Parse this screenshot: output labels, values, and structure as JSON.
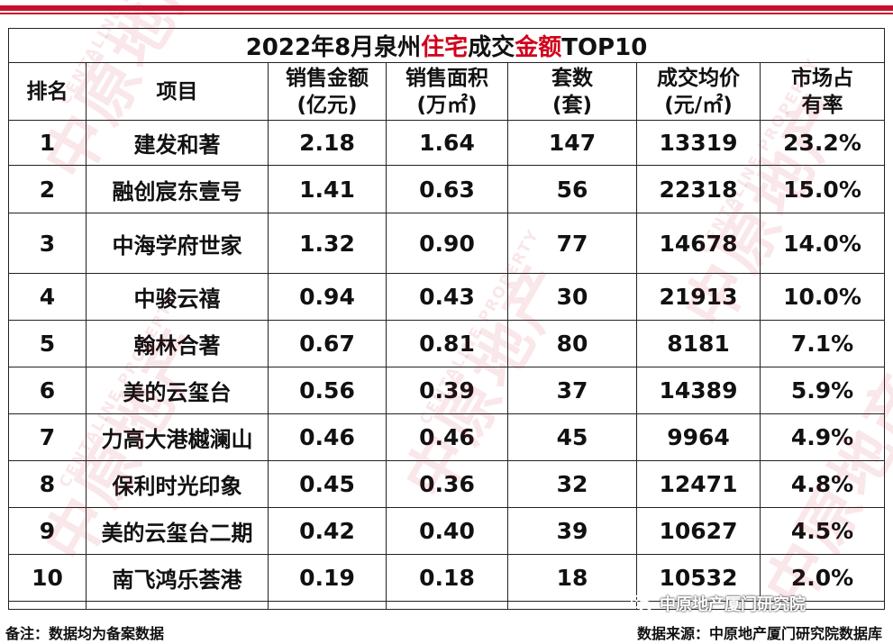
{
  "title": {
    "pre": "2022年8月泉州",
    "hl1": "住宅",
    "mid": "成交",
    "hl2": "金额",
    "post": "TOP10"
  },
  "headers": {
    "rank": "排名",
    "project": "项目",
    "amount_1": "销售金额",
    "amount_2": "(亿元)",
    "area_1": "销售面积",
    "area_2": "(万㎡)",
    "units_1": "套数",
    "units_2": "(套)",
    "price_1": "成交均价",
    "price_2": "(元/㎡)",
    "share_1": "市场占",
    "share_2": "有率"
  },
  "rows": [
    {
      "rank": "1",
      "name": "建发和著",
      "amount": "2.18",
      "area": "1.64",
      "units": "147",
      "price": "13319",
      "share": "23.2%"
    },
    {
      "rank": "2",
      "name": "融创宸东壹号",
      "amount": "1.41",
      "area": "0.63",
      "units": "56",
      "price": "22318",
      "share": "15.0%"
    },
    {
      "rank": "3",
      "name": "中海学府世家",
      "amount": "1.32",
      "area": "0.90",
      "units": "77",
      "price": "14678",
      "share": "14.0%"
    },
    {
      "rank": "4",
      "name": "中骏云禧",
      "amount": "0.94",
      "area": "0.43",
      "units": "30",
      "price": "21913",
      "share": "10.0%"
    },
    {
      "rank": "5",
      "name": "翰林合著",
      "amount": "0.67",
      "area": "0.81",
      "units": "80",
      "price": "8181",
      "share": "7.1%"
    },
    {
      "rank": "6",
      "name": "美的云玺台",
      "amount": "0.56",
      "area": "0.39",
      "units": "37",
      "price": "14389",
      "share": "5.9%"
    },
    {
      "rank": "7",
      "name": "力高大港樾澜山",
      "amount": "0.46",
      "area": "0.46",
      "units": "45",
      "price": "9964",
      "share": "4.9%"
    },
    {
      "rank": "8",
      "name": "保利时光印象",
      "amount": "0.45",
      "area": "0.36",
      "units": "32",
      "price": "12471",
      "share": "4.8%"
    },
    {
      "rank": "9",
      "name": "美的云玺台二期",
      "amount": "0.42",
      "area": "0.40",
      "units": "39",
      "price": "10627",
      "share": "4.5%"
    },
    {
      "rank": "10",
      "name": "南飞鸿乐荟港",
      "amount": "0.19",
      "area": "0.18",
      "units": "18",
      "price": "10532",
      "share": "2.0%"
    }
  ],
  "footer": {
    "note": "备注：数据均为备案数据",
    "source": "数据来源：中原地产厦门研究院数据库"
  },
  "wechat_account": "中原地产厦门研究院",
  "watermark": {
    "brand_cn": "中原地产",
    "brand_en": "CENTALINE PROPERTY"
  },
  "colors": {
    "accent_red": "#c8102e",
    "highlight_red": "#d0021b"
  }
}
